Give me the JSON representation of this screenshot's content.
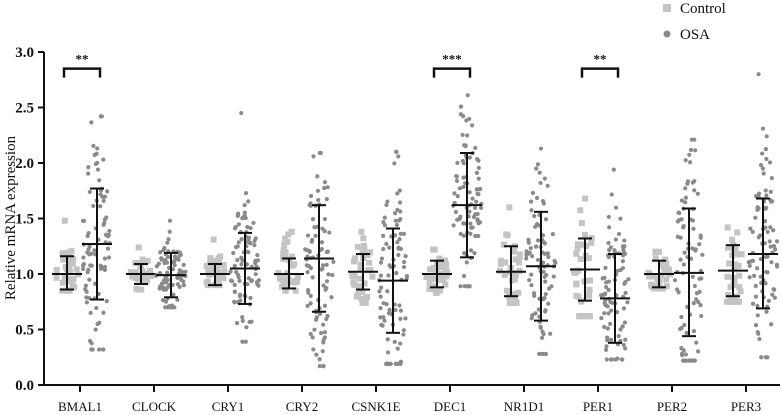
{
  "chart_data": {
    "type": "scatter",
    "subtype": "dot-plot with mean and SD error bars",
    "title": "",
    "xlabel": "",
    "ylabel": "Relative mRNA expression",
    "ylim": [
      0.0,
      3.0
    ],
    "yticks": [
      "0.0",
      "0.5",
      "1.0",
      "1.5",
      "2.0",
      "2.5",
      "3.0"
    ],
    "grid": false,
    "legend_position": "top-right",
    "categories": [
      "BMAL1",
      "CLOCK",
      "CRY1",
      "CRY2",
      "CSNK1E",
      "DEC1",
      "NR1D1",
      "PER1",
      "PER2",
      "PER3"
    ],
    "series": [
      {
        "name": "Control",
        "color": "#c4c4c4",
        "marker": "square",
        "n_points_per_category": 35,
        "mean": [
          1.0,
          1.0,
          1.0,
          1.0,
          1.02,
          1.0,
          1.02,
          1.04,
          1.0,
          1.03
        ],
        "sd_low": [
          0.86,
          0.91,
          0.9,
          0.87,
          0.86,
          0.88,
          0.8,
          0.76,
          0.88,
          0.8
        ],
        "sd_high": [
          1.16,
          1.09,
          1.09,
          1.14,
          1.18,
          1.12,
          1.25,
          1.32,
          1.12,
          1.26
        ],
        "min": [
          0.85,
          0.86,
          0.9,
          0.85,
          0.74,
          0.83,
          0.74,
          0.62,
          0.87,
          0.75
        ],
        "max": [
          1.48,
          1.24,
          1.31,
          1.38,
          1.38,
          1.22,
          1.6,
          1.68,
          1.2,
          1.42
        ]
      },
      {
        "name": "OSA",
        "color": "#8a8a8a",
        "marker": "circle",
        "n_points_per_category": 90,
        "mean": [
          1.27,
          0.99,
          1.05,
          1.14,
          0.94,
          1.62,
          1.07,
          0.78,
          1.01,
          1.18
        ],
        "sd_low": [
          0.77,
          0.79,
          0.73,
          0.66,
          0.47,
          1.15,
          0.58,
          0.38,
          0.44,
          0.69
        ],
        "sd_high": [
          1.77,
          1.19,
          1.37,
          1.62,
          1.41,
          2.09,
          1.56,
          1.18,
          1.59,
          1.68
        ],
        "min": [
          0.32,
          0.7,
          0.39,
          0.17,
          0.19,
          0.89,
          0.28,
          0.23,
          0.22,
          0.25
        ],
        "max": [
          2.42,
          1.48,
          2.45,
          2.09,
          2.1,
          2.61,
          2.13,
          1.94,
          2.21,
          2.8
        ]
      }
    ],
    "annotations": [
      {
        "category": "BMAL1",
        "label": "**",
        "bracket_y": 2.85
      },
      {
        "category": "DEC1",
        "label": "***",
        "bracket_y": 2.85
      },
      {
        "category": "PER1",
        "label": "**",
        "bracket_y": 2.85
      }
    ]
  }
}
